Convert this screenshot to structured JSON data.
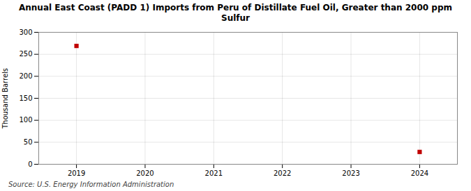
{
  "chart_data": {
    "type": "scatter",
    "title": "Annual East Coast (PADD 1) Imports from Peru of Distillate Fuel Oil, Greater than 2000 ppm\nSulfur",
    "ylabel": "Thousand Barrels",
    "source": "Source: U.S. Energy Information Administration",
    "x": [
      2019,
      2024
    ],
    "values": [
      269,
      28
    ],
    "color": "#c00000",
    "marker": "square",
    "xlim": [
      2018.45,
      2024.55
    ],
    "xticks": [
      2019,
      2020,
      2021,
      2022,
      2023,
      2024
    ],
    "ylim": [
      0,
      300
    ],
    "yticks": [
      0,
      50,
      100,
      150,
      200,
      250,
      300
    ],
    "grid": true
  }
}
